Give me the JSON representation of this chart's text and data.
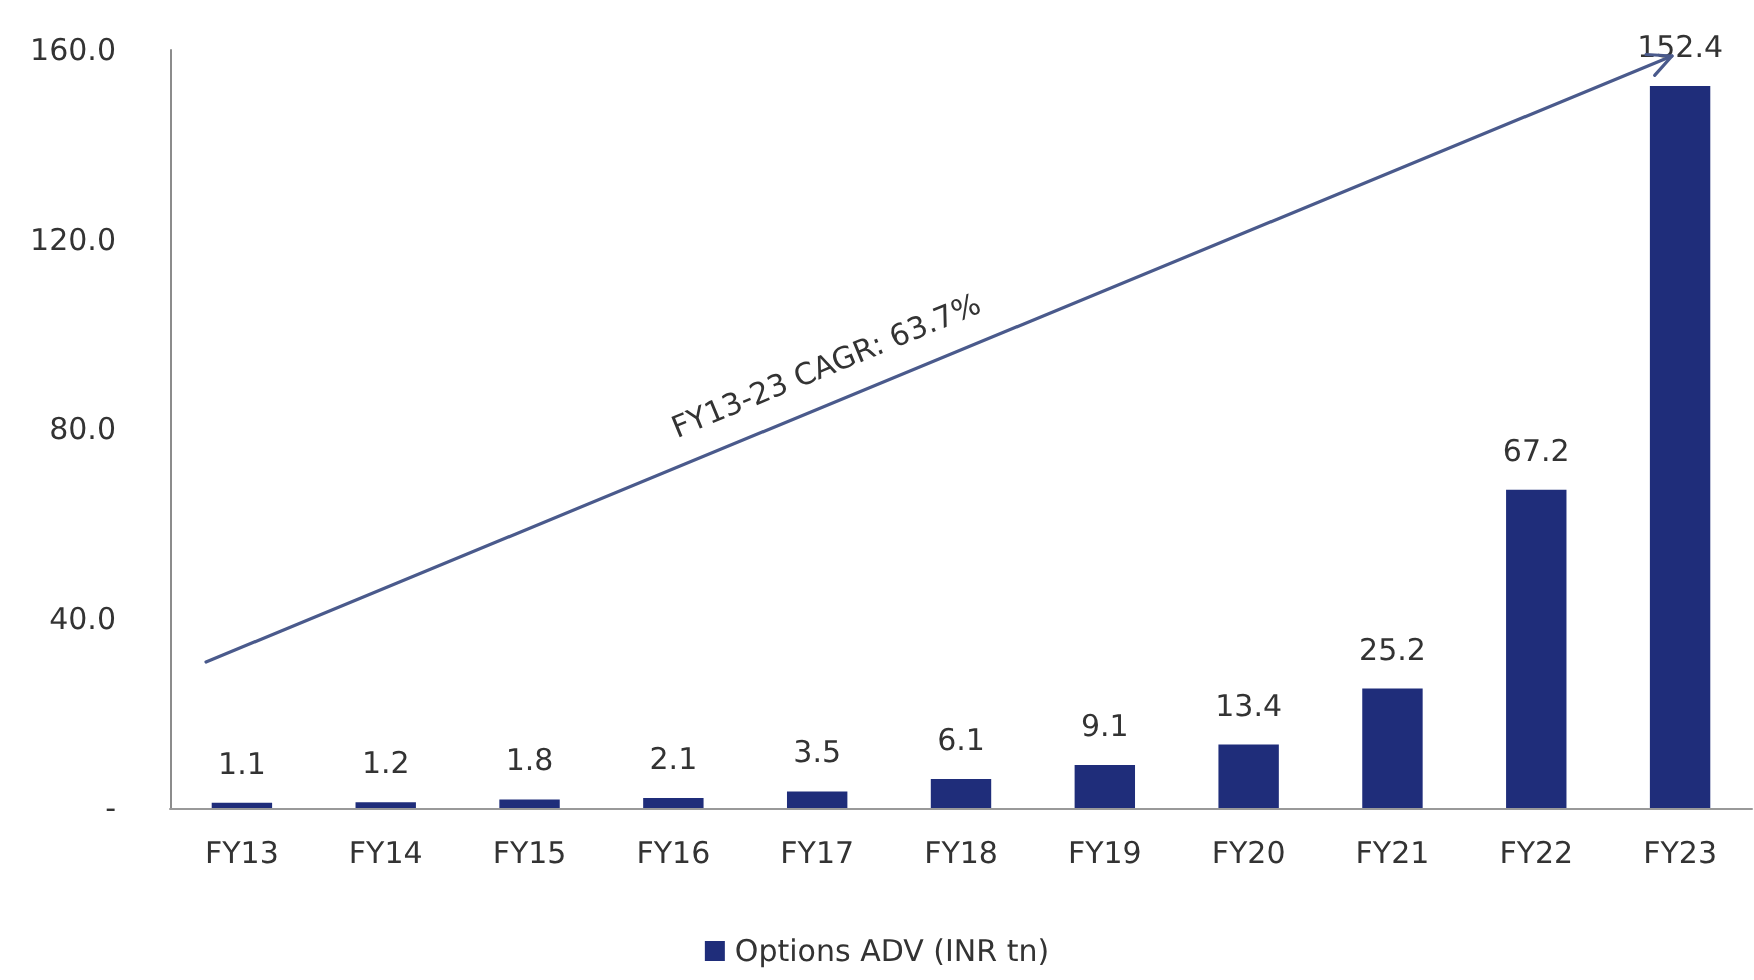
{
  "chart_data": {
    "type": "bar",
    "categories": [
      "FY13",
      "FY14",
      "FY15",
      "FY16",
      "FY17",
      "FY18",
      "FY19",
      "FY20",
      "FY21",
      "FY22",
      "FY23"
    ],
    "series": [
      {
        "name": "Options ADV (INR tn)",
        "color": "#1f2d7a",
        "values": [
          1.1,
          1.2,
          1.8,
          2.1,
          3.5,
          6.1,
          9.1,
          13.4,
          25.2,
          67.2,
          152.4
        ]
      }
    ],
    "ylim": [
      0,
      160
    ],
    "yticks": [
      {
        "value": 0,
        "label": "-"
      },
      {
        "value": 40,
        "label": "40.0"
      },
      {
        "value": 80,
        "label": "80.0"
      },
      {
        "value": 120,
        "label": "120.0"
      },
      {
        "value": 160,
        "label": "160.0"
      }
    ],
    "data_labels": true,
    "legend": "bottom",
    "grid": false,
    "annotations": [
      "FY13-23 CAGR: 63.7%"
    ]
  }
}
